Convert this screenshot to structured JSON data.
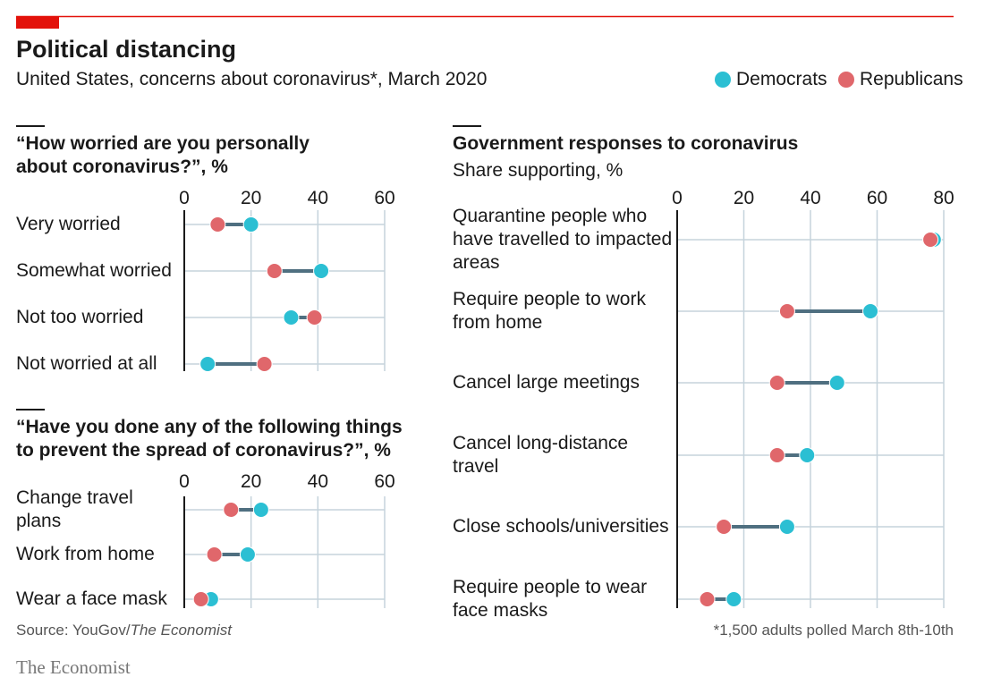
{
  "title": "Political distancing",
  "subtitle": "United States, concerns about coronavirus*, March 2020",
  "legend": [
    {
      "name": "Democrats",
      "color": "#2bbfd3"
    },
    {
      "name": "Republicans",
      "color": "#e0676b"
    }
  ],
  "source": {
    "text": "Source: YouGov/",
    "publication": "The Economist"
  },
  "footnote": "*1,500 adults polled March 8th-10th",
  "brand": "The Economist",
  "chart_data": [
    {
      "type": "dumbbell",
      "title": "“How worried are you personally about coronavirus?”, %",
      "categories": [
        "Very worried",
        "Somewhat worried",
        "Not too worried",
        "Not worried at all"
      ],
      "series": [
        {
          "values": [
            20,
            41,
            32,
            7
          ]
        },
        {
          "values": [
            10,
            27,
            39,
            24
          ]
        }
      ],
      "xlim": [
        0,
        60
      ],
      "xticks": [
        0,
        20,
        40,
        60
      ],
      "grid": true
    },
    {
      "type": "dumbbell",
      "title": "“Have you done any of the following things to prevent the spread of coronavirus?”, %",
      "categories": [
        "Change travel plans",
        "Work from home",
        "Wear a face mask"
      ],
      "series": [
        {
          "values": [
            23,
            19,
            8
          ]
        },
        {
          "values": [
            14,
            9,
            5
          ]
        }
      ],
      "xlim": [
        0,
        60
      ],
      "xticks": [
        0,
        20,
        40,
        60
      ],
      "grid": true
    },
    {
      "type": "dumbbell",
      "title": "Government responses to coronavirus",
      "subtitle": "Share supporting, %",
      "categories": [
        "Quarantine people who have travelled to impacted areas",
        "Require people to work from home",
        "Cancel large meetings",
        "Cancel long-distance travel",
        "Close schools/universities",
        "Require people to wear face masks"
      ],
      "series": [
        {
          "values": [
            77,
            58,
            48,
            39,
            33,
            17
          ]
        },
        {
          "values": [
            76,
            33,
            30,
            30,
            14,
            9
          ]
        }
      ],
      "xlim": [
        0,
        80
      ],
      "xticks": [
        0,
        20,
        40,
        60,
        80
      ],
      "grid": true
    }
  ]
}
